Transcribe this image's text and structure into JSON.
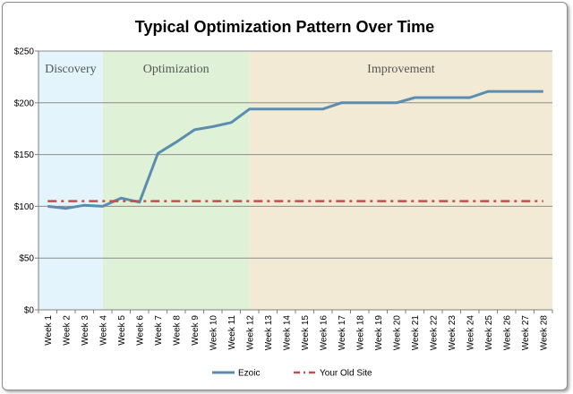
{
  "chart_data": {
    "type": "line",
    "title": "Typical Optimization Pattern Over Time",
    "xlabel": "",
    "ylabel": "",
    "categories": [
      "Week 1",
      "Week 2",
      "Week 3",
      "Week 4",
      "Week 5",
      "Week 6",
      "Week 7",
      "Week 8",
      "Week 9",
      "Week 10",
      "Week 11",
      "Week 12",
      "Week 13",
      "Week 14",
      "Week 15",
      "Week 16",
      "Week 17",
      "Week 18",
      "Week 19",
      "Week 20",
      "Week 21",
      "Week 22",
      "Week 23",
      "Week 24",
      "Week 25",
      "Week 26",
      "Week 27",
      "Week 28"
    ],
    "ylim": [
      0,
      250
    ],
    "yticks": [
      0,
      50,
      100,
      150,
      200,
      250
    ],
    "ytick_labels": [
      "$0",
      "$50",
      "$100",
      "$150",
      "$200",
      "$250"
    ],
    "grid": true,
    "legend_position": "bottom",
    "phases": [
      {
        "label": "Discovery",
        "from_week": 1,
        "to_week": 4,
        "color": "#e3f4fc"
      },
      {
        "label": "Optimization",
        "from_week": 4,
        "to_week": 12,
        "color": "#dff2d8"
      },
      {
        "label": "Improvement",
        "from_week": 12,
        "to_week": 28,
        "color": "#f2ead4"
      }
    ],
    "series": [
      {
        "name": "Ezoic",
        "color": "#5b8db1",
        "style": "solid",
        "values": [
          100,
          98,
          101,
          100,
          108,
          104,
          151,
          162,
          174,
          177,
          181,
          194,
          194,
          194,
          194,
          194,
          200,
          200,
          200,
          200,
          205,
          205,
          205,
          205,
          211,
          211,
          211,
          211
        ]
      },
      {
        "name": "Your Old Site",
        "color": "#c0504d",
        "style": "dash-dot",
        "values": [
          105,
          105,
          105,
          105,
          105,
          105,
          105,
          105,
          105,
          105,
          105,
          105,
          105,
          105,
          105,
          105,
          105,
          105,
          105,
          105,
          105,
          105,
          105,
          105,
          105,
          105,
          105,
          105
        ]
      }
    ]
  }
}
